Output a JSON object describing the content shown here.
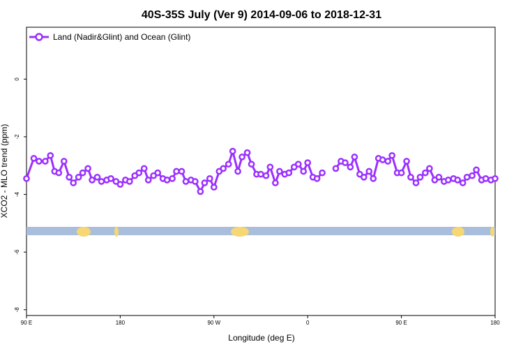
{
  "chart_data": {
    "type": "line",
    "title": "40S-35S July (Ver 9)   2014-09-06 to 2018-12-31",
    "xlabel": "Longitude (deg E)",
    "ylabel": "XCO2 - MLO trend (ppm)",
    "xlim": [
      90,
      540
    ],
    "ylim": [
      -8.2,
      1.8
    ],
    "x_ticks": [
      {
        "value": 90,
        "label": "90 E"
      },
      {
        "value": 180,
        "label": "180"
      },
      {
        "value": 270,
        "label": "90 W"
      },
      {
        "value": 360,
        "label": "0"
      },
      {
        "value": 450,
        "label": "90 E"
      },
      {
        "value": 540,
        "label": "180"
      }
    ],
    "y_ticks": [
      {
        "value": 0,
        "label": "0"
      },
      {
        "value": -2,
        "label": "-2"
      },
      {
        "value": -4,
        "label": "-4"
      },
      {
        "value": -6,
        "label": "-6"
      },
      {
        "value": -8,
        "label": "-8"
      }
    ],
    "legend": {
      "position": "top-left"
    },
    "series": [
      {
        "name": "Land (Nadir&Glint) and Ocean (Glint)",
        "color": "#9b30ff",
        "segments": [
          [
            [
              90,
              -3.45
            ],
            [
              97,
              -2.75
            ],
            [
              102,
              -2.85
            ],
            [
              108,
              -2.85
            ],
            [
              113,
              -2.65
            ],
            [
              117,
              -3.2
            ],
            [
              121,
              -3.25
            ],
            [
              126,
              -2.85
            ],
            [
              131,
              -3.4
            ],
            [
              135,
              -3.6
            ],
            [
              140,
              -3.4
            ],
            [
              144,
              -3.25
            ],
            [
              149,
              -3.1
            ],
            [
              153,
              -3.5
            ],
            [
              158,
              -3.4
            ],
            [
              162,
              -3.55
            ],
            [
              167,
              -3.5
            ],
            [
              171,
              -3.45
            ],
            [
              176,
              -3.55
            ],
            [
              180,
              -3.65
            ],
            [
              185,
              -3.5
            ],
            [
              189,
              -3.55
            ],
            [
              194,
              -3.35
            ],
            [
              198,
              -3.25
            ],
            [
              203,
              -3.1
            ],
            [
              207,
              -3.5
            ],
            [
              212,
              -3.35
            ],
            [
              216,
              -3.25
            ],
            [
              221,
              -3.45
            ],
            [
              225,
              -3.5
            ],
            [
              230,
              -3.45
            ],
            [
              234,
              -3.2
            ],
            [
              239,
              -3.2
            ],
            [
              243,
              -3.55
            ],
            [
              248,
              -3.5
            ],
            [
              252,
              -3.55
            ],
            [
              257,
              -3.9
            ],
            [
              261,
              -3.6
            ],
            [
              266,
              -3.45
            ],
            [
              270,
              -3.75
            ],
            [
              275,
              -3.2
            ],
            [
              279,
              -3.1
            ],
            [
              284,
              -2.95
            ],
            [
              288,
              -2.5
            ],
            [
              293,
              -3.2
            ],
            [
              297,
              -2.7
            ],
            [
              302,
              -2.55
            ],
            [
              306,
              -2.95
            ],
            [
              311,
              -3.3
            ],
            [
              315,
              -3.3
            ],
            [
              320,
              -3.35
            ],
            [
              324,
              -3.05
            ],
            [
              329,
              -3.6
            ],
            [
              333,
              -3.2
            ],
            [
              338,
              -3.3
            ],
            [
              342,
              -3.25
            ],
            [
              347,
              -3.05
            ],
            [
              351,
              -2.95
            ],
            [
              356,
              -3.2
            ],
            [
              360,
              -2.9
            ],
            [
              365,
              -3.4
            ],
            [
              369,
              -3.45
            ],
            [
              374,
              -3.25
            ]
          ],
          [
            [
              387,
              -3.1
            ],
            [
              392,
              -2.85
            ],
            [
              396,
              -2.9
            ],
            [
              401,
              -3.05
            ],
            [
              405,
              -2.7
            ],
            [
              410,
              -3.3
            ],
            [
              414,
              -3.4
            ],
            [
              419,
              -3.2
            ],
            [
              423,
              -3.45
            ],
            [
              428,
              -2.75
            ],
            [
              432,
              -2.8
            ],
            [
              437,
              -2.85
            ],
            [
              441,
              -2.65
            ],
            [
              446,
              -3.25
            ],
            [
              450,
              -3.25
            ],
            [
              455,
              -2.85
            ],
            [
              459,
              -3.4
            ],
            [
              464,
              -3.6
            ],
            [
              468,
              -3.4
            ],
            [
              473,
              -3.25
            ],
            [
              477,
              -3.1
            ],
            [
              482,
              -3.5
            ],
            [
              486,
              -3.4
            ],
            [
              491,
              -3.55
            ],
            [
              495,
              -3.5
            ],
            [
              500,
              -3.45
            ],
            [
              504,
              -3.5
            ],
            [
              509,
              -3.6
            ],
            [
              513,
              -3.4
            ],
            [
              518,
              -3.35
            ],
            [
              522,
              -3.15
            ],
            [
              527,
              -3.5
            ],
            [
              531,
              -3.45
            ],
            [
              536,
              -3.5
            ],
            [
              540,
              -3.45
            ]
          ]
        ]
      }
    ]
  }
}
